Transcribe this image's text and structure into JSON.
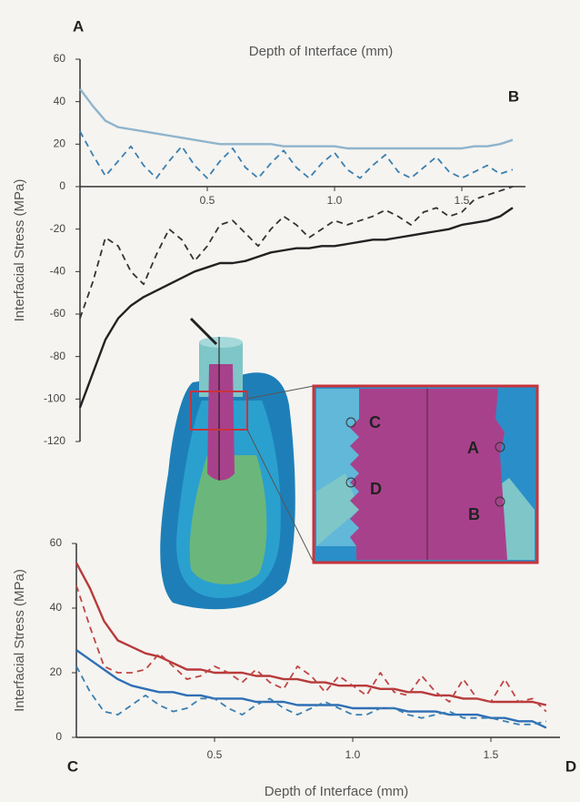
{
  "chart_data": [
    {
      "type": "line",
      "x_label": "Depth of Interface (mm)",
      "y_label": "Interfacial Stress (MPa)",
      "corner_labels": [
        "A",
        "B"
      ],
      "x": [
        0,
        0.05,
        0.1,
        0.15,
        0.2,
        0.25,
        0.3,
        0.35,
        0.4,
        0.45,
        0.5,
        0.55,
        0.6,
        0.65,
        0.7,
        0.75,
        0.8,
        0.85,
        0.9,
        0.95,
        1,
        1.05,
        1.1,
        1.15,
        1.2,
        1.25,
        1.3,
        1.35,
        1.4,
        1.45,
        1.5,
        1.55,
        1.6,
        1.65,
        1.7
      ],
      "xlim": [
        0,
        1.75
      ],
      "ylim": [
        -120,
        60
      ],
      "xticks": [
        0.5,
        {
          "value": 1,
          "label": "1.0"
        },
        1.5
      ],
      "yticks": [
        -120,
        -100,
        -80,
        -60,
        -40,
        -20,
        0,
        20,
        40,
        60
      ],
      "series": [
        {
          "color": "#8fb4cc",
          "dashed": false,
          "values": [
            46,
            38,
            31,
            28,
            27,
            26,
            25,
            24,
            23,
            22,
            21,
            20,
            20,
            20,
            20,
            20,
            19,
            19,
            19,
            19,
            19,
            18,
            18,
            18,
            18,
            18,
            18,
            18,
            18,
            18,
            18,
            19,
            19,
            20,
            22
          ]
        },
        {
          "color": "#3a7fb0",
          "dashed": true,
          "values": [
            26,
            15,
            5,
            12,
            19,
            10,
            4,
            12,
            19,
            10,
            4,
            12,
            18,
            9,
            4,
            11,
            17,
            9,
            4,
            11,
            16,
            8,
            4,
            10,
            15,
            7,
            4,
            9,
            14,
            7,
            4,
            7,
            10,
            6,
            8
          ]
        },
        {
          "color": "#333333",
          "dashed": true,
          "values": [
            -62,
            -45,
            -24,
            -28,
            -40,
            -46,
            -32,
            -20,
            -25,
            -35,
            -28,
            -18,
            -16,
            -22,
            -28,
            -20,
            -14,
            -18,
            -24,
            -20,
            -16,
            -18,
            -16,
            -14,
            -11,
            -14,
            -18,
            -12,
            -10,
            -14,
            -12,
            -6,
            -4,
            -2,
            0
          ]
        },
        {
          "color": "#222222",
          "dashed": false,
          "values": [
            -104,
            -88,
            -72,
            -62,
            -56,
            -52,
            -49,
            -46,
            -43,
            -40,
            -38,
            -36,
            -36,
            -35,
            -33,
            -31,
            -30,
            -29,
            -29,
            -28,
            -28,
            -27,
            -26,
            -25,
            -25,
            -24,
            -23,
            -22,
            -21,
            -20,
            -18,
            -17,
            -16,
            -14,
            -10
          ]
        }
      ]
    },
    {
      "type": "line",
      "x_label": "Depth of Interface (mm)",
      "y_label": "Interfacial Stress (MPa)",
      "corner_labels": [
        "C",
        "D"
      ],
      "x": [
        0,
        0.05,
        0.1,
        0.15,
        0.2,
        0.25,
        0.3,
        0.35,
        0.4,
        0.45,
        0.5,
        0.55,
        0.6,
        0.65,
        0.7,
        0.75,
        0.8,
        0.85,
        0.9,
        0.95,
        1,
        1.05,
        1.1,
        1.15,
        1.2,
        1.25,
        1.3,
        1.35,
        1.4,
        1.45,
        1.5,
        1.55,
        1.6,
        1.65,
        1.7
      ],
      "xlim": [
        0,
        1.75
      ],
      "ylim": [
        0,
        60
      ],
      "xticks": [
        0.5,
        {
          "value": 1,
          "label": "1.0"
        },
        1.5
      ],
      "yticks": [
        0,
        20,
        40,
        60
      ],
      "series": [
        {
          "color": "#b83a3a",
          "dashed": false,
          "values": [
            54,
            46,
            36,
            30,
            28,
            26,
            25,
            23,
            21,
            21,
            20,
            20,
            20,
            19,
            19,
            18,
            18,
            17,
            17,
            16,
            16,
            16,
            15,
            15,
            14,
            14,
            13,
            13,
            12,
            12,
            11,
            11,
            11,
            11,
            10
          ]
        },
        {
          "color": "#c04545",
          "dashed": true,
          "values": [
            47,
            34,
            22,
            20,
            20,
            21,
            26,
            22,
            18,
            19,
            22,
            20,
            17,
            21,
            17,
            15,
            22,
            19,
            14,
            19,
            16,
            13,
            20,
            14,
            13,
            19,
            14,
            11,
            18,
            12,
            11,
            18,
            11,
            12,
            8
          ]
        },
        {
          "color": "#2f6fb5",
          "dashed": false,
          "values": [
            27,
            24,
            21,
            18,
            16,
            15,
            14,
            14,
            13,
            13,
            12,
            12,
            12,
            11,
            11,
            11,
            10,
            10,
            10,
            10,
            9,
            9,
            9,
            9,
            8,
            8,
            8,
            7,
            7,
            7,
            6,
            6,
            5,
            5,
            3
          ]
        },
        {
          "color": "#3a7fb0",
          "dashed": true,
          "values": [
            22,
            14,
            8,
            7,
            10,
            13,
            10,
            8,
            9,
            12,
            12,
            9,
            7,
            10,
            12,
            9,
            7,
            9,
            11,
            9,
            7,
            7,
            9,
            9,
            7,
            6,
            7,
            8,
            6,
            6,
            6,
            5,
            4,
            4,
            5
          ]
        }
      ]
    }
  ],
  "diagram": {
    "labels": [
      "C",
      "D",
      "A",
      "B"
    ]
  }
}
